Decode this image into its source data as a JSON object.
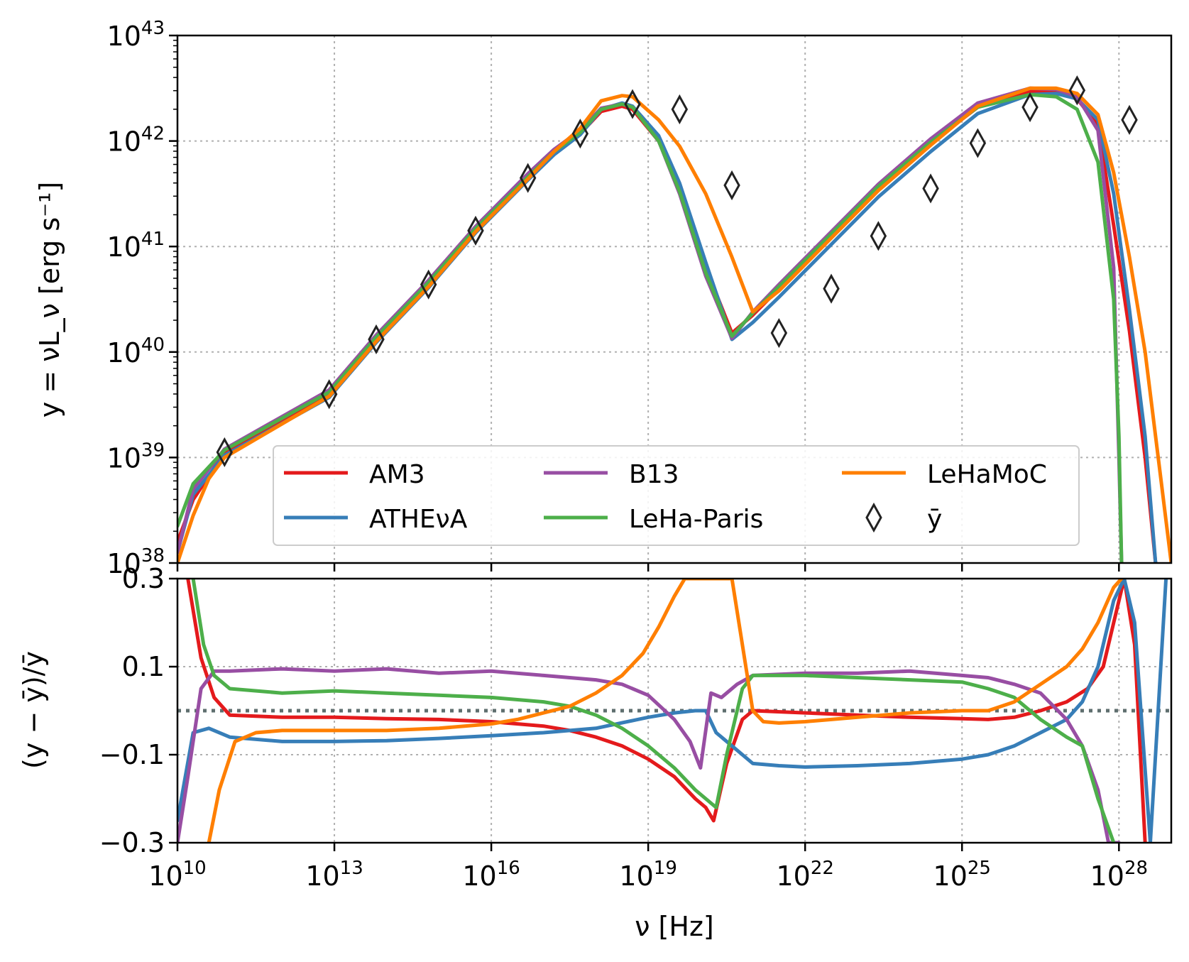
{
  "chart_data": [
    {
      "type": "line",
      "panel": "top",
      "xscale": "log",
      "yscale": "log",
      "xlim": [
        10000000000.0,
        1e+29
      ],
      "ylim": [
        1e+38,
        1e+43
      ],
      "ylabel": "y = νL_ν [erg s⁻¹]",
      "grid": true,
      "legend": {
        "placement": "lower-center",
        "columns": 3,
        "entries": [
          "AM3",
          "B13",
          "LeHaMoC",
          "ATHEνA",
          "LeHa-Paris",
          "ȳ"
        ]
      },
      "yticks": [
        {
          "base": "10",
          "exp": "38",
          "value": 1e+38
        },
        {
          "base": "10",
          "exp": "39",
          "value": 1e+39
        },
        {
          "base": "10",
          "exp": "40",
          "value": 1e+40
        },
        {
          "base": "10",
          "exp": "41",
          "value": 1e+41
        },
        {
          "base": "10",
          "exp": "42",
          "value": 1e+42
        },
        {
          "base": "10",
          "exp": "43",
          "value": 1e+43
        }
      ],
      "mean_marker": {
        "name": "ȳ",
        "symbol": "diamond",
        "log_x": [
          10.9,
          12.9,
          13.8,
          14.8,
          15.7,
          16.7,
          17.7,
          18.7,
          19.6,
          20.6,
          21.5,
          22.5,
          23.4,
          24.4,
          25.3,
          26.3,
          27.2,
          28.2
        ],
        "log_y": [
          39.05,
          39.6,
          40.12,
          40.64,
          41.15,
          41.65,
          42.07,
          42.35,
          42.3,
          41.58,
          40.18,
          40.6,
          41.1,
          41.55,
          41.98,
          42.32,
          42.48,
          42.2
        ]
      },
      "series": [
        {
          "name": "AM3",
          "color": "#e41a1c",
          "log_x": [
            10.0,
            10.3,
            10.9,
            12.9,
            13.8,
            14.8,
            15.7,
            16.7,
            17.2,
            17.7,
            18.1,
            18.5,
            18.7,
            19.2,
            19.6,
            20.1,
            20.6,
            21.0,
            21.5,
            22.5,
            23.4,
            24.4,
            25.3,
            26.3,
            26.8,
            27.2,
            27.6,
            27.9,
            28.2,
            28.5,
            28.7
          ],
          "log_y": [
            38.2,
            38.6,
            39.05,
            39.6,
            40.12,
            40.64,
            41.15,
            41.65,
            41.88,
            42.07,
            42.28,
            42.33,
            42.3,
            42.0,
            41.55,
            40.8,
            40.18,
            40.35,
            40.6,
            41.1,
            41.55,
            41.98,
            42.32,
            42.47,
            42.46,
            42.4,
            42.15,
            41.2,
            40.2,
            39.0,
            38.0
          ]
        },
        {
          "name": "ATHEνA",
          "color": "#377eb8",
          "log_x": [
            10.0,
            10.3,
            10.9,
            12.9,
            13.8,
            14.8,
            15.7,
            16.7,
            17.2,
            17.7,
            18.1,
            18.5,
            18.7,
            19.2,
            19.6,
            20.1,
            20.6,
            21.0,
            21.5,
            22.5,
            23.4,
            24.4,
            25.3,
            26.3,
            26.8,
            27.2,
            27.6,
            27.9,
            28.2,
            28.5,
            28.7
          ],
          "log_y": [
            38.1,
            38.65,
            39.02,
            39.57,
            40.09,
            40.61,
            41.13,
            41.63,
            41.87,
            42.06,
            42.3,
            42.36,
            42.33,
            42.05,
            41.6,
            40.85,
            40.12,
            40.28,
            40.52,
            41.02,
            41.47,
            41.9,
            42.26,
            42.44,
            42.45,
            42.4,
            42.2,
            41.5,
            40.4,
            39.2,
            38.0
          ]
        },
        {
          "name": "B13",
          "color": "#984ea3",
          "log_x": [
            10.0,
            10.3,
            10.9,
            12.9,
            13.8,
            14.8,
            15.7,
            16.7,
            17.2,
            17.7,
            18.1,
            18.5,
            18.7,
            19.2,
            19.6,
            20.1,
            20.6,
            21.0,
            21.5,
            22.5,
            23.4,
            24.4,
            25.3,
            26.3,
            26.8,
            27.2,
            27.6,
            27.9,
            28.0,
            28.05
          ],
          "log_y": [
            38.1,
            38.7,
            39.08,
            39.64,
            40.16,
            40.68,
            41.19,
            41.69,
            41.92,
            42.1,
            42.31,
            42.35,
            42.32,
            42.0,
            41.5,
            40.72,
            40.13,
            40.38,
            40.64,
            41.14,
            41.59,
            42.02,
            42.36,
            42.5,
            42.49,
            42.42,
            42.1,
            40.8,
            39.0,
            38.0
          ]
        },
        {
          "name": "LeHa-Paris",
          "color": "#4daf4a",
          "log_x": [
            10.0,
            10.3,
            10.9,
            12.9,
            13.8,
            14.8,
            15.7,
            16.7,
            17.2,
            17.7,
            18.1,
            18.5,
            18.7,
            19.2,
            19.6,
            20.1,
            20.6,
            21.0,
            21.5,
            22.5,
            23.4,
            24.4,
            25.3,
            26.3,
            26.8,
            27.2,
            27.6,
            27.9,
            28.0,
            28.05
          ],
          "log_y": [
            38.35,
            38.75,
            39.07,
            39.62,
            40.14,
            40.66,
            41.17,
            41.66,
            41.9,
            42.08,
            42.3,
            42.35,
            42.32,
            42.0,
            41.52,
            40.75,
            40.15,
            40.37,
            40.62,
            41.12,
            41.57,
            41.99,
            42.32,
            42.44,
            42.42,
            42.3,
            41.8,
            40.5,
            39.2,
            38.0
          ]
        },
        {
          "name": "LeHaMoC",
          "color": "#ff7f00",
          "log_x": [
            10.0,
            10.3,
            10.6,
            10.9,
            12.9,
            13.8,
            14.8,
            15.7,
            16.7,
            17.2,
            17.7,
            18.1,
            18.5,
            18.7,
            19.2,
            19.6,
            20.1,
            20.6,
            21.0,
            21.5,
            22.5,
            23.4,
            24.4,
            25.3,
            26.3,
            26.8,
            27.2,
            27.6,
            27.9,
            28.2,
            28.5,
            28.8,
            29.0
          ],
          "log_y": [
            38.0,
            38.45,
            38.8,
            39.0,
            39.58,
            40.1,
            40.62,
            41.14,
            41.64,
            41.9,
            42.12,
            42.38,
            42.43,
            42.42,
            42.2,
            41.95,
            41.5,
            40.9,
            40.38,
            40.58,
            41.08,
            41.53,
            41.96,
            42.33,
            42.5,
            42.5,
            42.45,
            42.25,
            41.7,
            40.9,
            40.0,
            38.8,
            38.0
          ]
        }
      ]
    },
    {
      "type": "line",
      "panel": "bottom",
      "xscale": "log",
      "xlim": [
        10000000000.0,
        1e+29
      ],
      "ylim": [
        -0.3,
        0.3
      ],
      "xlabel": "ν [Hz]",
      "ylabel": "(y − ȳ)/ȳ",
      "grid": true,
      "reference_line": {
        "y": 0.0,
        "style": "dotted",
        "color": "#5f6f6f"
      },
      "xticks": [
        {
          "base": "10",
          "exp": "10",
          "value": 10000000000.0
        },
        {
          "base": "10",
          "exp": "13",
          "value": 10000000000000.0
        },
        {
          "base": "10",
          "exp": "16",
          "value": 1e+16
        },
        {
          "base": "10",
          "exp": "19",
          "value": 1e+19
        },
        {
          "base": "10",
          "exp": "22",
          "value": 1e+22
        },
        {
          "base": "10",
          "exp": "25",
          "value": 1e+25
        },
        {
          "base": "10",
          "exp": "28",
          "value": 1e+28
        }
      ],
      "yticks": [
        {
          "label": "−0.3",
          "value": -0.3
        },
        {
          "label": "−0.1",
          "value": -0.1
        },
        {
          "label": "0.1",
          "value": 0.1
        },
        {
          "label": "0.3",
          "value": 0.3
        }
      ],
      "series": [
        {
          "name": "AM3",
          "color": "#e41a1c",
          "log_x": [
            10.2,
            10.45,
            10.7,
            11.0,
            12.0,
            13.0,
            14.0,
            15.0,
            16.0,
            17.0,
            17.5,
            18.0,
            18.5,
            19.0,
            19.5,
            19.9,
            20.1,
            20.25,
            20.5,
            20.8,
            21.0,
            22.0,
            23.0,
            24.0,
            25.0,
            25.5,
            26.0,
            26.5,
            27.0,
            27.4,
            27.7,
            27.9,
            28.1,
            28.3,
            28.5
          ],
          "y": [
            0.3,
            0.12,
            0.03,
            -0.01,
            -0.015,
            -0.015,
            -0.018,
            -0.02,
            -0.025,
            -0.035,
            -0.045,
            -0.06,
            -0.08,
            -0.11,
            -0.15,
            -0.2,
            -0.22,
            -0.25,
            -0.12,
            -0.02,
            0.0,
            -0.005,
            -0.01,
            -0.015,
            -0.018,
            -0.02,
            -0.015,
            0.0,
            0.02,
            0.05,
            0.1,
            0.2,
            0.3,
            0.15,
            -0.3
          ]
        },
        {
          "name": "ATHEνA",
          "color": "#377eb8",
          "log_x": [
            10.0,
            10.3,
            10.6,
            11.0,
            12.0,
            13.0,
            14.0,
            15.0,
            16.0,
            17.0,
            18.0,
            19.0,
            19.5,
            19.9,
            20.1,
            20.3,
            20.6,
            21.0,
            21.5,
            22.0,
            23.0,
            24.0,
            25.0,
            25.5,
            26.0,
            26.5,
            27.0,
            27.3,
            27.6,
            27.9,
            28.1,
            28.3,
            28.6,
            28.9
          ],
          "y": [
            -0.25,
            -0.05,
            -0.04,
            -0.06,
            -0.07,
            -0.07,
            -0.068,
            -0.063,
            -0.057,
            -0.05,
            -0.04,
            -0.015,
            -0.005,
            0.0,
            0.0,
            -0.05,
            -0.08,
            -0.12,
            -0.125,
            -0.128,
            -0.125,
            -0.12,
            -0.11,
            -0.1,
            -0.08,
            -0.05,
            -0.02,
            0.02,
            0.1,
            0.25,
            0.3,
            0.2,
            -0.3,
            0.3
          ]
        },
        {
          "name": "B13",
          "color": "#984ea3",
          "log_x": [
            10.0,
            10.2,
            10.45,
            10.7,
            11.0,
            12.0,
            13.0,
            14.0,
            15.0,
            16.0,
            17.0,
            18.0,
            18.5,
            19.0,
            19.5,
            19.8,
            20.0,
            20.2,
            20.4,
            20.7,
            21.0,
            22.0,
            23.0,
            24.0,
            25.0,
            25.5,
            26.0,
            26.5,
            27.0,
            27.3,
            27.6,
            27.8,
            28.0
          ],
          "y": [
            -0.3,
            -0.15,
            0.05,
            0.09,
            0.09,
            0.095,
            0.09,
            0.095,
            0.085,
            0.09,
            0.08,
            0.07,
            0.06,
            0.035,
            -0.02,
            -0.07,
            -0.13,
            0.04,
            0.03,
            0.06,
            0.08,
            0.085,
            0.085,
            0.09,
            0.08,
            0.075,
            0.06,
            0.04,
            -0.02,
            -0.08,
            -0.18,
            -0.3,
            -0.3
          ]
        },
        {
          "name": "LeHa-Paris",
          "color": "#4daf4a",
          "log_x": [
            10.3,
            10.5,
            10.7,
            11.0,
            12.0,
            13.0,
            14.0,
            15.0,
            16.0,
            17.0,
            17.5,
            18.0,
            18.5,
            19.0,
            19.5,
            19.9,
            20.1,
            20.3,
            20.5,
            20.8,
            21.0,
            22.0,
            23.0,
            24.0,
            25.0,
            25.5,
            26.0,
            26.5,
            27.0,
            27.3,
            27.6,
            27.9
          ],
          "y": [
            0.3,
            0.15,
            0.08,
            0.05,
            0.04,
            0.045,
            0.04,
            0.035,
            0.03,
            0.02,
            0.01,
            -0.01,
            -0.04,
            -0.08,
            -0.13,
            -0.18,
            -0.2,
            -0.22,
            -0.1,
            0.05,
            0.08,
            0.08,
            0.075,
            0.07,
            0.065,
            0.05,
            0.03,
            -0.02,
            -0.06,
            -0.08,
            -0.2,
            -0.3
          ]
        },
        {
          "name": "LeHaMoC",
          "color": "#ff7f00",
          "log_x": [
            10.6,
            10.8,
            11.1,
            11.5,
            12.0,
            13.0,
            14.0,
            15.0,
            16.0,
            16.5,
            17.0,
            17.5,
            18.0,
            18.5,
            18.9,
            19.2,
            19.5,
            19.7,
            20.2,
            20.6,
            21.0,
            21.2,
            21.5,
            22.0,
            23.0,
            24.0,
            25.0,
            25.5,
            26.0,
            26.5,
            27.0,
            27.3,
            27.6,
            27.9,
            28.05
          ],
          "y": [
            -0.3,
            -0.18,
            -0.07,
            -0.05,
            -0.045,
            -0.045,
            -0.045,
            -0.04,
            -0.03,
            -0.02,
            -0.005,
            0.01,
            0.04,
            0.08,
            0.13,
            0.19,
            0.26,
            0.3,
            0.3,
            0.3,
            0.0,
            -0.025,
            -0.028,
            -0.025,
            -0.015,
            -0.005,
            0.0,
            0.0,
            0.02,
            0.06,
            0.1,
            0.14,
            0.2,
            0.28,
            0.3
          ]
        }
      ]
    }
  ]
}
